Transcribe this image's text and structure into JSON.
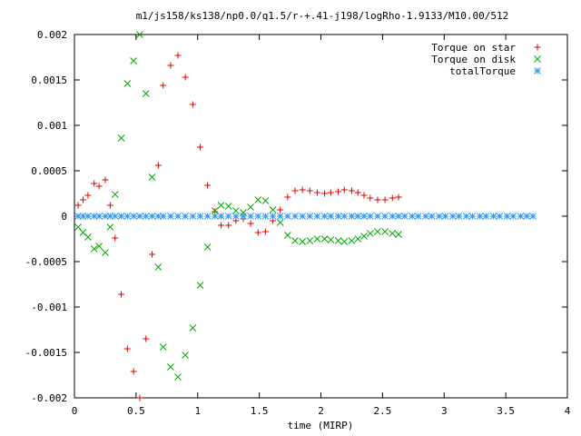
{
  "chart_data": {
    "type": "scatter",
    "title": "m1/js158/ks138/np0.0/q1.5/r-+.41-j198/logRho-1.9133/M10.00/512",
    "xlabel": "time (MIRP)",
    "ylabel": "",
    "xlim": [
      0,
      4
    ],
    "ylim": [
      -0.002,
      0.002
    ],
    "x_ticks": [
      "0",
      "0.5",
      "1",
      "1.5",
      "2",
      "2.5",
      "3",
      "3.5",
      "4"
    ],
    "y_ticks": [
      "-0.002",
      "-0.0015",
      "-0.001",
      "-0.0005",
      "0",
      "0.0005",
      "0.001",
      "0.0015",
      "0.002"
    ],
    "x_tick_values": [
      0,
      0.5,
      1,
      1.5,
      2,
      2.5,
      3,
      3.5,
      4
    ],
    "y_tick_values": [
      -0.002,
      -0.0015,
      -0.001,
      -0.0005,
      0,
      0.0005,
      0.001,
      0.0015,
      0.002
    ],
    "grid": false,
    "legend_position": "top-right",
    "x": [
      0.03,
      0.07,
      0.11,
      0.16,
      0.2,
      0.25,
      0.29,
      0.33,
      0.38,
      0.43,
      0.48,
      0.53,
      0.58,
      0.63,
      0.68,
      0.72,
      0.78,
      0.84,
      0.9,
      0.96,
      1.02,
      1.08,
      1.14,
      1.19,
      1.25,
      1.31,
      1.37,
      1.43,
      1.49,
      1.55,
      1.61,
      1.67,
      1.73,
      1.79,
      1.85,
      1.91,
      1.97,
      2.03,
      2.08,
      2.14,
      2.19,
      2.25,
      2.3,
      2.35,
      2.4,
      2.46,
      2.52,
      2.58,
      2.63,
      2.68,
      2.74,
      2.79,
      2.85,
      2.9,
      2.96,
      3.01,
      3.07,
      3.12,
      3.18,
      3.23,
      3.29,
      3.34,
      3.4,
      3.45,
      3.51,
      3.56,
      3.62,
      3.67,
      3.72
    ],
    "series": [
      {
        "name": "Torque on star",
        "color": "#dd0000",
        "marker": "plus",
        "points": [
          [
            0.03,
            0.00012
          ],
          [
            0.07,
            0.00018
          ],
          [
            0.11,
            0.00023
          ],
          [
            0.16,
            0.00036
          ],
          [
            0.2,
            0.00033
          ],
          [
            0.25,
            0.0004
          ],
          [
            0.29,
            0.00012
          ],
          [
            0.33,
            -0.00024
          ],
          [
            0.38,
            -0.00086
          ],
          [
            0.43,
            -0.00146
          ],
          [
            0.48,
            -0.00171
          ],
          [
            0.53,
            -0.002
          ],
          [
            0.58,
            -0.00135
          ],
          [
            0.63,
            -0.00042
          ],
          [
            0.68,
            0.00056
          ],
          [
            0.72,
            0.00144
          ],
          [
            0.78,
            0.00166
          ],
          [
            0.84,
            0.00177
          ],
          [
            0.9,
            0.00153
          ],
          [
            0.96,
            0.00123
          ],
          [
            1.02,
            0.00076
          ],
          [
            1.08,
            0.00034
          ],
          [
            1.14,
            5e-05
          ],
          [
            1.19,
            -0.0001
          ],
          [
            1.25,
            -0.0001
          ],
          [
            1.31,
            -5e-05
          ],
          [
            1.37,
            -3e-05
          ],
          [
            1.43,
            -8e-05
          ],
          [
            1.49,
            -0.00018
          ],
          [
            1.55,
            -0.00017
          ],
          [
            1.61,
            -5e-05
          ],
          [
            1.67,
            7e-05
          ],
          [
            1.73,
            0.00021
          ],
          [
            1.79,
            0.00028
          ],
          [
            1.85,
            0.00029
          ],
          [
            1.91,
            0.00028
          ],
          [
            1.97,
            0.00026
          ],
          [
            2.03,
            0.00025
          ],
          [
            2.08,
            0.00026
          ],
          [
            2.14,
            0.00027
          ],
          [
            2.19,
            0.00029
          ],
          [
            2.25,
            0.00028
          ],
          [
            2.3,
            0.00026
          ],
          [
            2.35,
            0.00023
          ],
          [
            2.4,
            0.0002
          ],
          [
            2.46,
            0.00018
          ],
          [
            2.52,
            0.00018
          ],
          [
            2.58,
            0.0002
          ],
          [
            2.63,
            0.00021
          ]
        ]
      },
      {
        "name": "Torque on disk",
        "color": "#00aa00",
        "marker": "cross",
        "points": [
          [
            0.03,
            -0.00012
          ],
          [
            0.07,
            -0.00018
          ],
          [
            0.11,
            -0.00023
          ],
          [
            0.16,
            -0.00036
          ],
          [
            0.2,
            -0.00033
          ],
          [
            0.25,
            -0.0004
          ],
          [
            0.29,
            -0.00012
          ],
          [
            0.33,
            0.00024
          ],
          [
            0.38,
            0.00086
          ],
          [
            0.43,
            0.00146
          ],
          [
            0.48,
            0.00171
          ],
          [
            0.53,
            0.002
          ],
          [
            0.58,
            0.00135
          ],
          [
            0.63,
            0.00043
          ],
          [
            0.68,
            -0.00056
          ],
          [
            0.72,
            -0.00144
          ],
          [
            0.78,
            -0.00166
          ],
          [
            0.84,
            -0.00177
          ],
          [
            0.9,
            -0.00153
          ],
          [
            0.96,
            -0.00123
          ],
          [
            1.02,
            -0.00076
          ],
          [
            1.08,
            -0.00034
          ],
          [
            1.14,
            6e-05
          ],
          [
            1.19,
            0.00012
          ],
          [
            1.25,
            0.00011
          ],
          [
            1.31,
            6e-05
          ],
          [
            1.37,
            4e-05
          ],
          [
            1.43,
            0.0001
          ],
          [
            1.49,
            0.00018
          ],
          [
            1.55,
            0.00017
          ],
          [
            1.61,
            7e-05
          ],
          [
            1.67,
            -7e-05
          ],
          [
            1.73,
            -0.00021
          ],
          [
            1.79,
            -0.00027
          ],
          [
            1.85,
            -0.00028
          ],
          [
            1.91,
            -0.00027
          ],
          [
            1.97,
            -0.00025
          ],
          [
            2.03,
            -0.00025
          ],
          [
            2.08,
            -0.00026
          ],
          [
            2.14,
            -0.00027
          ],
          [
            2.19,
            -0.00028
          ],
          [
            2.25,
            -0.00027
          ],
          [
            2.3,
            -0.00025
          ],
          [
            2.35,
            -0.00022
          ],
          [
            2.4,
            -0.00019
          ],
          [
            2.46,
            -0.00017
          ],
          [
            2.52,
            -0.00017
          ],
          [
            2.58,
            -0.00019
          ],
          [
            2.63,
            -0.0002
          ]
        ]
      },
      {
        "name": "totalTorque",
        "color": "#3399ee",
        "marker": "star",
        "constant_y": 0
      }
    ]
  }
}
